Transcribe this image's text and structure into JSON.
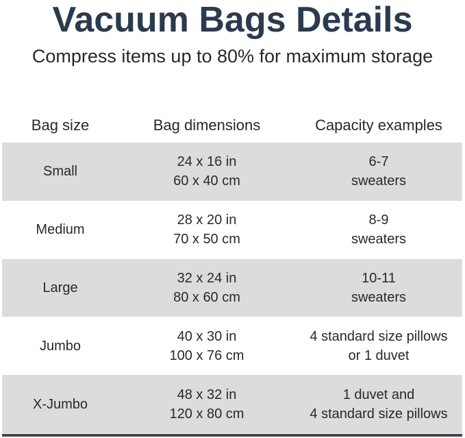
{
  "header": {
    "title": "Vacuum Bags Details",
    "subtitle": "Compress items up to 80% for maximum storage"
  },
  "table": {
    "columns": [
      "Bag size",
      "Bag dimensions",
      "Capacity examples"
    ],
    "rows": [
      {
        "size": "Small",
        "dims_in": "24 x 16 in",
        "dims_cm": "60 x 40 cm",
        "capacity_1": "6-7",
        "capacity_2": "sweaters"
      },
      {
        "size": "Medium",
        "dims_in": "28 x 20 in",
        "dims_cm": "70 x 50 cm",
        "capacity_1": "8-9",
        "capacity_2": "sweaters"
      },
      {
        "size": "Large",
        "dims_in": "32 x 24 in",
        "dims_cm": "80 x 60 cm",
        "capacity_1": "10-11",
        "capacity_2": "sweaters"
      },
      {
        "size": "Jumbo",
        "dims_in": "40 x 30 in",
        "dims_cm": "100 x 76 cm",
        "capacity_1": "4 standard size pillows",
        "capacity_2": "or 1 duvet"
      },
      {
        "size": "X-Jumbo",
        "dims_in": "48 x 32 in",
        "dims_cm": "120 x 80 cm",
        "capacity_1": "1 duvet and",
        "capacity_2": "4 standard size pillows"
      }
    ]
  },
  "colors": {
    "title_text": "#2b3a4d",
    "body_text": "#26292e",
    "alt_row_background": "#dcdcdc",
    "divider_bar": "#414751",
    "page_background": "#ffffff"
  }
}
